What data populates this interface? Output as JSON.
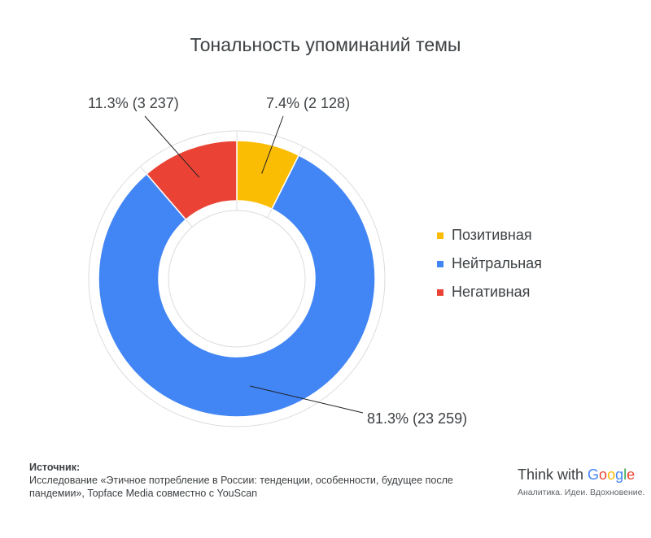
{
  "chart_data": {
    "type": "pie",
    "title": "Тональность упоминаний темы",
    "categories": [
      "Позитивная",
      "Нейтральная",
      "Негативная"
    ],
    "values": [
      7.4,
      81.3,
      11.3
    ],
    "counts": [
      2128,
      23259,
      3237
    ],
    "data_labels": [
      "7.4% (2 128)",
      "81.3% (23 259)",
      "11.3% (3 237)"
    ],
    "colors": [
      "#fbbc04",
      "#4285f4",
      "#ea4335"
    ],
    "legend_position": "right"
  },
  "source": {
    "heading": "Источник:",
    "text": "Исследование «Этичное потребление в России: тенденции, особенности, будущее после пандемии», Topface Media совместно с YouScan"
  },
  "brand": {
    "think_with": "Think with ",
    "g_letters": [
      "G",
      "o",
      "o",
      "g",
      "l",
      "e"
    ],
    "tagline": "Аналитика. Идеи. Вдохновение."
  }
}
